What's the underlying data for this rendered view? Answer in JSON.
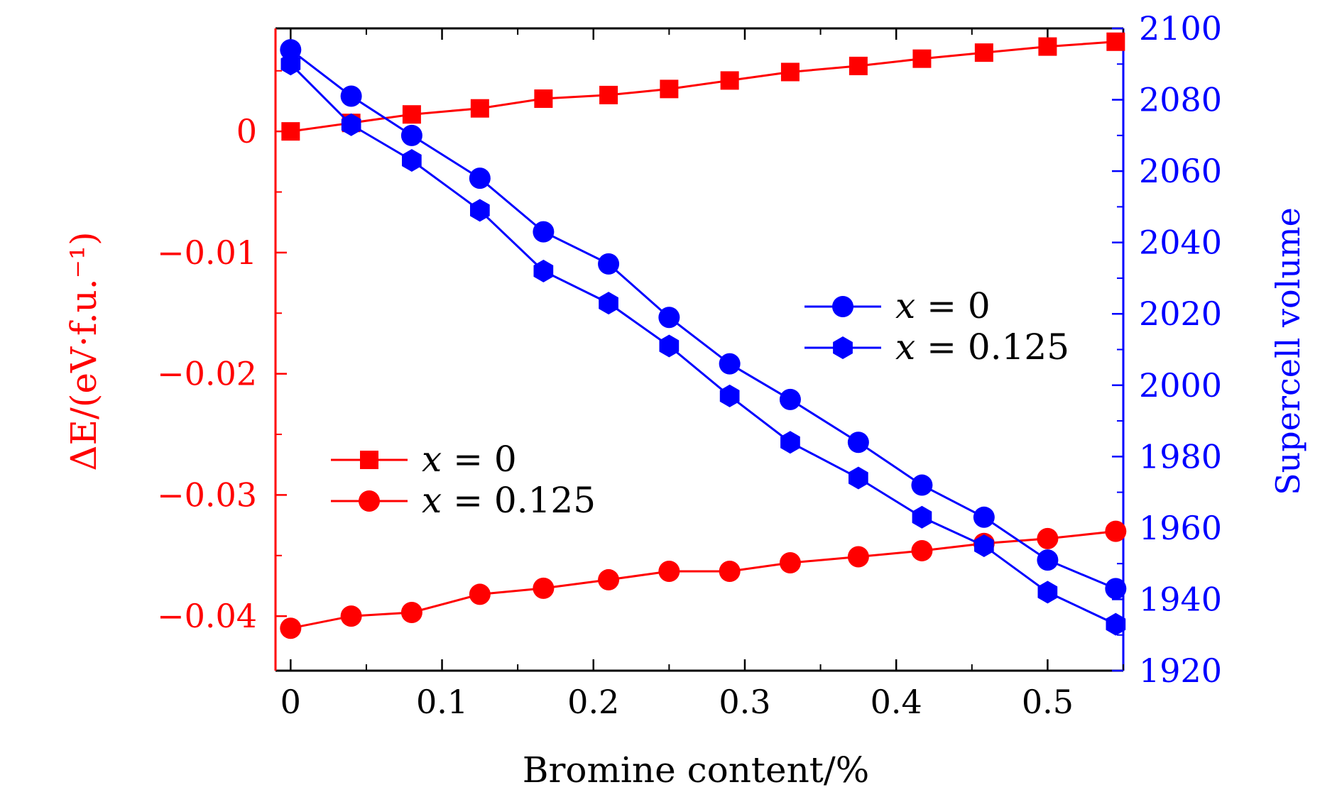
{
  "chart_data": {
    "type": "line",
    "xlabel": "Bromine content/%",
    "ylabel_left": "ΔE/(eV·f.u.⁻¹)",
    "ylabel_right": "Supercell volume",
    "xlim": [
      -0.01,
      0.55
    ],
    "ylim_left": [
      -0.0445,
      0.0085
    ],
    "ylim_right": [
      1920,
      2100
    ],
    "x_ticks": [
      0,
      0.1,
      0.2,
      0.3,
      0.4,
      0.5
    ],
    "x_tick_labels": [
      "0",
      "0.1",
      "0.2",
      "0.3",
      "0.4",
      "0.5"
    ],
    "y_left_ticks": [
      0,
      -0.01,
      -0.02,
      -0.03,
      -0.04
    ],
    "y_left_tick_labels": [
      "0",
      "−0.01",
      "−0.02",
      "−0.03",
      "−0.04"
    ],
    "y_right_ticks": [
      1920,
      1940,
      1960,
      1980,
      2000,
      2020,
      2040,
      2060,
      2080,
      2100
    ],
    "y_right_tick_labels": [
      "1920",
      "1940",
      "1960",
      "1980",
      "2000",
      "2020",
      "2040",
      "2060",
      "2080",
      "2100"
    ],
    "x": [
      0,
      0.04,
      0.08,
      0.125,
      0.167,
      0.21,
      0.25,
      0.29,
      0.33,
      0.375,
      0.417,
      0.458,
      0.5,
      0.545
    ],
    "series": [
      {
        "name": "x = 0",
        "axis": "left",
        "marker": "square",
        "color": "#ff0000",
        "values": [
          0.0,
          0.0007,
          0.0014,
          0.0019,
          0.0027,
          0.003,
          0.0035,
          0.0042,
          0.0049,
          0.0054,
          0.006,
          0.0065,
          0.007,
          0.0074
        ]
      },
      {
        "name": "x = 0.125",
        "axis": "left",
        "marker": "circle",
        "color": "#ff0000",
        "values": [
          -0.041,
          -0.04,
          -0.0397,
          -0.0382,
          -0.0377,
          -0.037,
          -0.0363,
          -0.0363,
          -0.0356,
          -0.0351,
          -0.0346,
          -0.034,
          -0.0336,
          -0.033
        ]
      },
      {
        "name": "x = 0",
        "axis": "right",
        "marker": "circle",
        "color": "#0000ff",
        "values": [
          2094,
          2081,
          2070,
          2058,
          2043,
          2034,
          2019,
          2006,
          1996,
          1984,
          1972,
          1963,
          1951,
          1943
        ]
      },
      {
        "name": "x = 0.125",
        "axis": "right",
        "marker": "hexagon",
        "color": "#0000ff",
        "values": [
          2090,
          2073,
          2063,
          2049,
          2032,
          2023,
          2011,
          1997,
          1984,
          1974,
          1963,
          1955,
          1942,
          1933
        ]
      }
    ],
    "legend_blue": {
      "placement": "center-right",
      "entries": [
        {
          "var": "x",
          "eq": " = 0"
        },
        {
          "var": "x",
          "eq": " = 0.125"
        }
      ]
    },
    "legend_red": {
      "placement": "lower-left",
      "entries": [
        {
          "var": "x",
          "eq": " = 0"
        },
        {
          "var": "x",
          "eq": " = 0.125"
        }
      ]
    },
    "colors": {
      "left_axis": "#ff0000",
      "right_axis": "#0000ff",
      "frame": "#000000"
    }
  }
}
